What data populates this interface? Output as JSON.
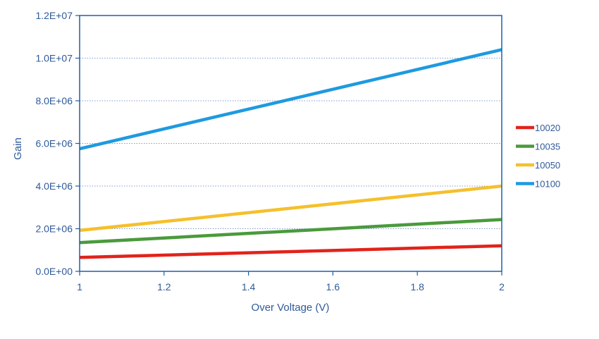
{
  "chart_data": {
    "type": "line",
    "title": "",
    "xlabel": "Over Voltage (V)",
    "ylabel": "Gain",
    "xlim": [
      1,
      2
    ],
    "ylim": [
      0,
      12000000
    ],
    "x_ticks": [
      1,
      1.2,
      1.4,
      1.6,
      1.8,
      2
    ],
    "x_tick_labels": [
      "1",
      "1.2",
      "1.4",
      "1.6",
      "1.8",
      "2"
    ],
    "y_ticks": [
      0,
      2000000,
      4000000,
      6000000,
      8000000,
      10000000,
      12000000
    ],
    "y_tick_labels": [
      "0.0E+00",
      "2.0E+06",
      "4.0E+06",
      "6.0E+06",
      "8.0E+06",
      "1.0E+07",
      "1.2E+07"
    ],
    "grid": "horizontal dotted",
    "legend_position": "right",
    "series": [
      {
        "name": "10020",
        "color": "#e2231a",
        "x": [
          1,
          2
        ],
        "y": [
          650000,
          1200000
        ]
      },
      {
        "name": "10035",
        "color": "#4a9a3c",
        "x": [
          1,
          2
        ],
        "y": [
          1350000,
          2430000
        ]
      },
      {
        "name": "10050",
        "color": "#f5c02c",
        "x": [
          1,
          2
        ],
        "y": [
          1920000,
          4000000
        ]
      },
      {
        "name": "10100",
        "color": "#1e9ae0",
        "x": [
          1,
          2
        ],
        "y": [
          5750000,
          10400000
        ]
      }
    ]
  }
}
